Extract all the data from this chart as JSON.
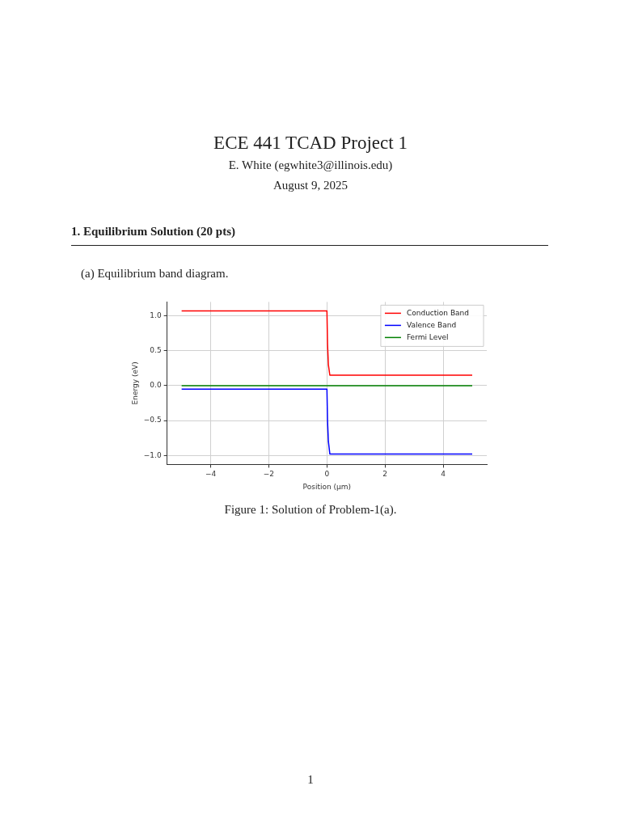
{
  "chart_data": {
    "type": "line",
    "title": "ECE 441 TCAD Project 1",
    "subtitle": "E. White (egwhite3@illinois.edu)",
    "annotations": [
      "August 9, 2025",
      "1. Equilibrium Solution (20 pts)",
      "(a) Equilibrium band diagram.",
      "Figure 1: Solution of Problem-1(a).",
      "1"
    ],
    "xlabel": "Position (μm)",
    "ylabel": "Energy (eV)",
    "xlim": [
      -5.5,
      5.5
    ],
    "xticks": [
      {
        "value": -4,
        "label": "−4"
      },
      {
        "value": -2,
        "label": "−2"
      },
      0,
      2,
      4
    ],
    "ylim": [
      -1.13,
      1.2
    ],
    "yticks": [
      {
        "value": -1,
        "label": "−1.0"
      },
      {
        "value": -0.5,
        "label": "−0.5"
      },
      {
        "value": 0,
        "label": "0.0"
      },
      {
        "value": 0.5,
        "label": "0.5"
      },
      {
        "value": 1,
        "label": "1.0"
      }
    ],
    "grid": true,
    "legend": "top right",
    "marker": "none",
    "line_style": "solid",
    "series": [
      {
        "name": "Conduction Band",
        "color": "#ff0000",
        "x": [
          -5,
          0,
          0.02,
          0.05,
          0.1,
          5
        ],
        "values": [
          1.07,
          1.07,
          0.6,
          0.3,
          0.15,
          0.15
        ]
      },
      {
        "name": "Valence Band",
        "color": "#0000ff",
        "x": [
          -5,
          0,
          0.02,
          0.05,
          0.1,
          5
        ],
        "values": [
          -0.05,
          -0.05,
          -0.5,
          -0.8,
          -0.98,
          -0.98
        ]
      },
      {
        "name": "Fermi Level",
        "color": "#008000",
        "x": [
          -5,
          5
        ],
        "values": [
          0,
          0
        ]
      }
    ]
  }
}
